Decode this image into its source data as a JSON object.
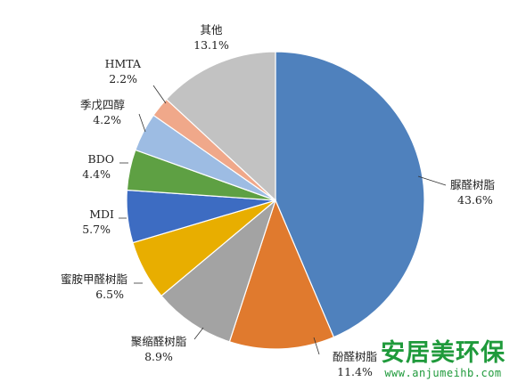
{
  "chart_data": {
    "type": "pie",
    "title": "",
    "start_angle_deg": 0,
    "direction": "clockwise",
    "slices": [
      {
        "label": "脲醛树脂",
        "value": 43.6,
        "display": "43.6%",
        "color": "#4f81bd",
        "label_anchor": "start"
      },
      {
        "label": "酚醛树脂",
        "value": 11.4,
        "display": "11.4%",
        "color": "#e07a2e",
        "label_anchor": "middle"
      },
      {
        "label": "聚缩醛树脂",
        "value": 8.9,
        "display": "8.9%",
        "color": "#a3a3a3",
        "label_anchor": "middle"
      },
      {
        "label": "蜜胺甲醛树脂",
        "value": 6.5,
        "display": "6.5%",
        "color": "#e8ae00",
        "label_anchor": "end"
      },
      {
        "label": "MDI",
        "value": 5.7,
        "display": "5.7%",
        "color": "#3d6cc2",
        "label_anchor": "end"
      },
      {
        "label": "BDO",
        "value": 4.4,
        "display": "4.4%",
        "color": "#5ea043",
        "label_anchor": "end"
      },
      {
        "label": "季戊四醇",
        "value": 4.2,
        "display": "4.2%",
        "color": "#9dbce3",
        "label_anchor": "end"
      },
      {
        "label": "HMTA",
        "value": 2.2,
        "display": "2.2%",
        "color": "#f0a88a",
        "label_anchor": "end"
      },
      {
        "label": "其他",
        "value": 13.1,
        "display": "13.1%",
        "color": "#c2c2c2",
        "label_anchor": "middle"
      }
    ]
  },
  "watermark": {
    "name": "安居美环保",
    "url": "www.anjumeihb.com"
  }
}
